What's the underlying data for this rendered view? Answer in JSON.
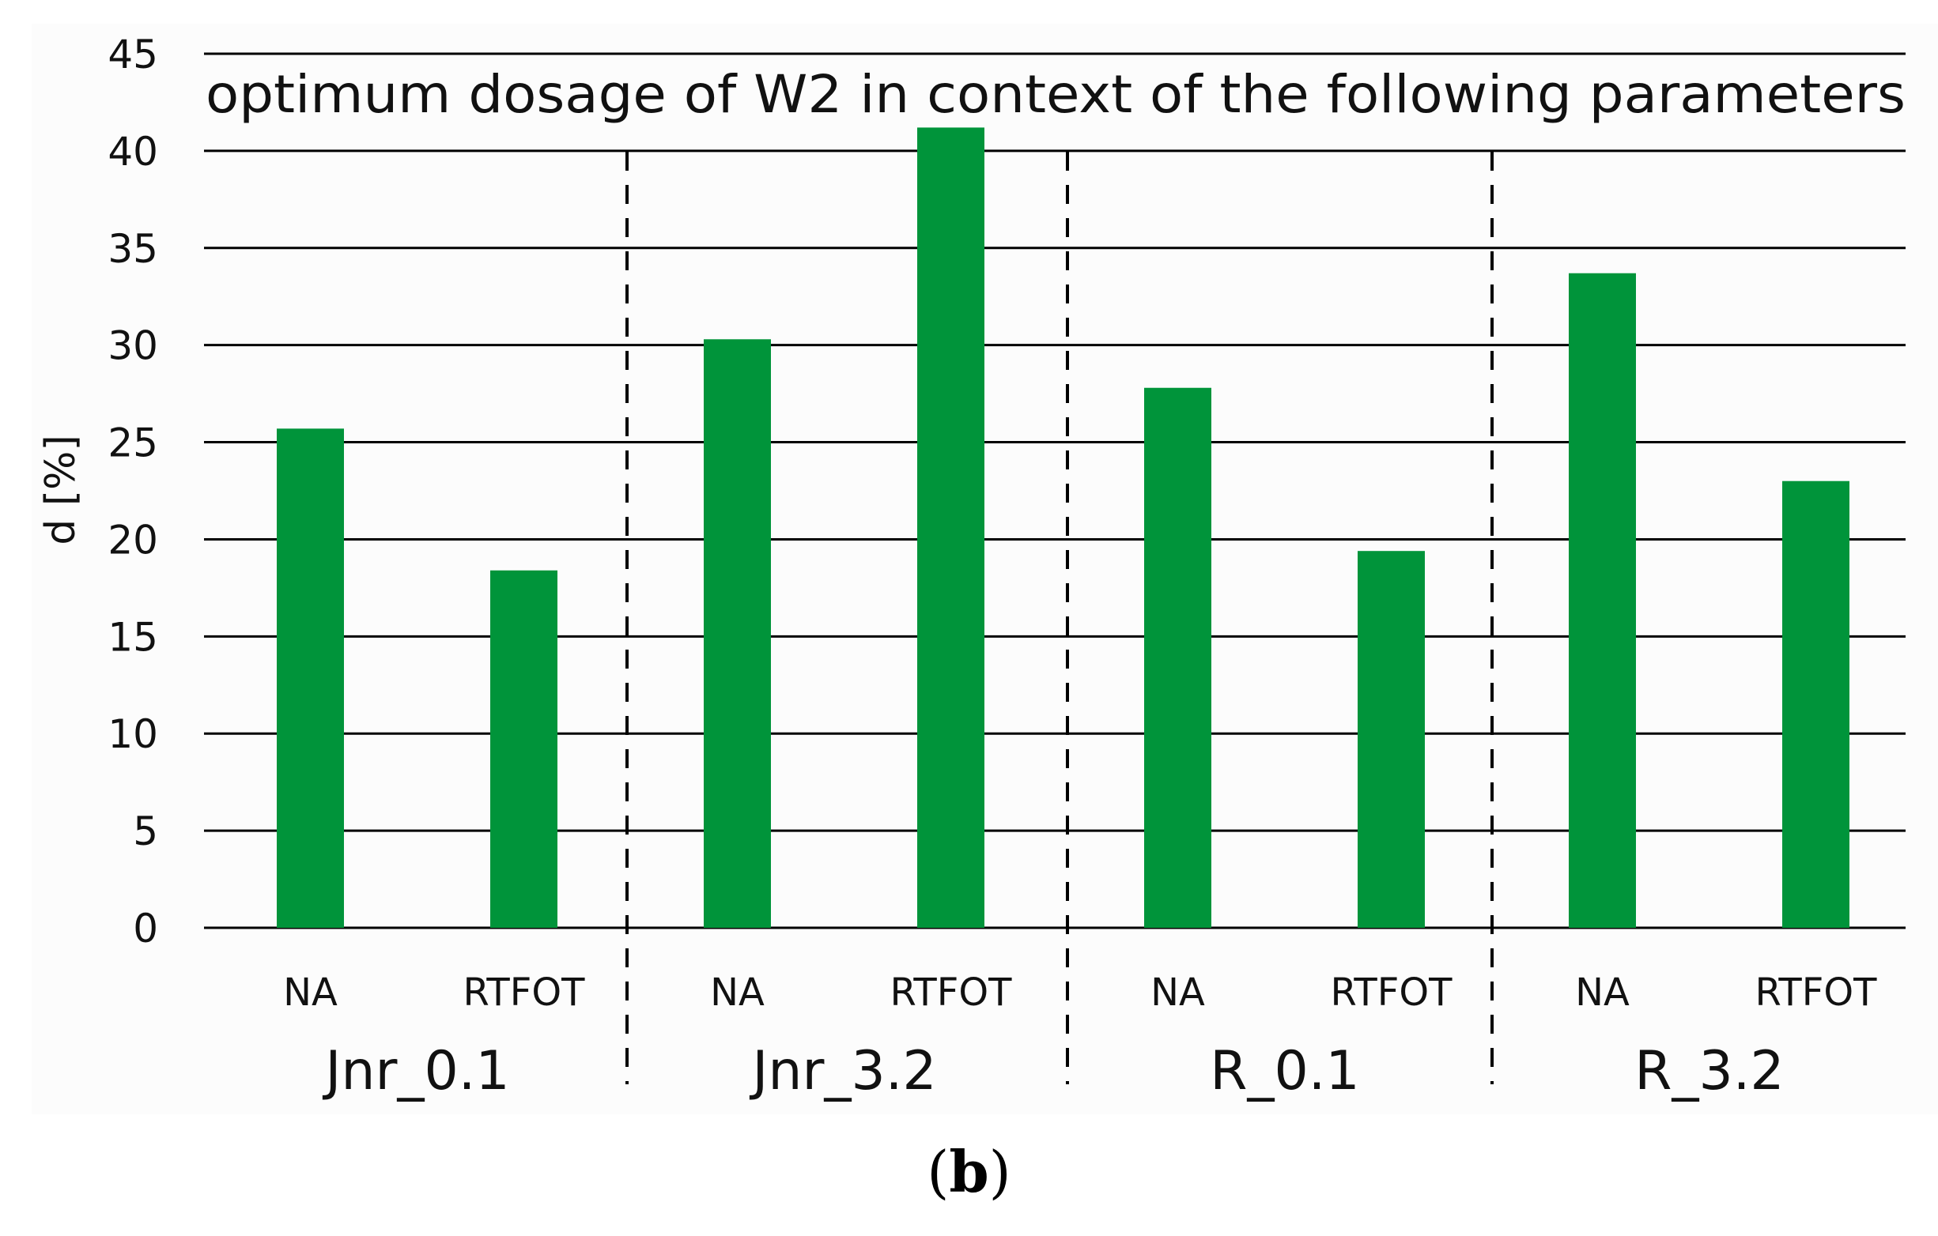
{
  "caption": {
    "open": "(",
    "letter": "b",
    "close": ")"
  },
  "colors": {
    "bar": "#00943a",
    "grid": "#000000",
    "text": "#111111"
  },
  "chart_data": {
    "type": "bar",
    "title": "optimum dosage of W2 in context of the following parameters",
    "xlabel": "",
    "ylabel": "d [%]",
    "ylim": [
      0,
      45
    ],
    "yticks": [
      0,
      5,
      10,
      15,
      20,
      25,
      30,
      35,
      40,
      45
    ],
    "grid": true,
    "legend": "none",
    "groups": [
      {
        "name": "Jnr_0.1",
        "categories": [
          "NA",
          "RTFOT"
        ],
        "values": [
          25.7,
          18.4
        ]
      },
      {
        "name": "Jnr_3.2",
        "categories": [
          "NA",
          "RTFOT"
        ],
        "values": [
          30.3,
          41.2
        ]
      },
      {
        "name": "R_0.1",
        "categories": [
          "NA",
          "RTFOT"
        ],
        "values": [
          27.8,
          19.4
        ]
      },
      {
        "name": "R_3.2",
        "categories": [
          "NA",
          "RTFOT"
        ],
        "values": [
          33.7,
          23.0
        ]
      }
    ]
  }
}
